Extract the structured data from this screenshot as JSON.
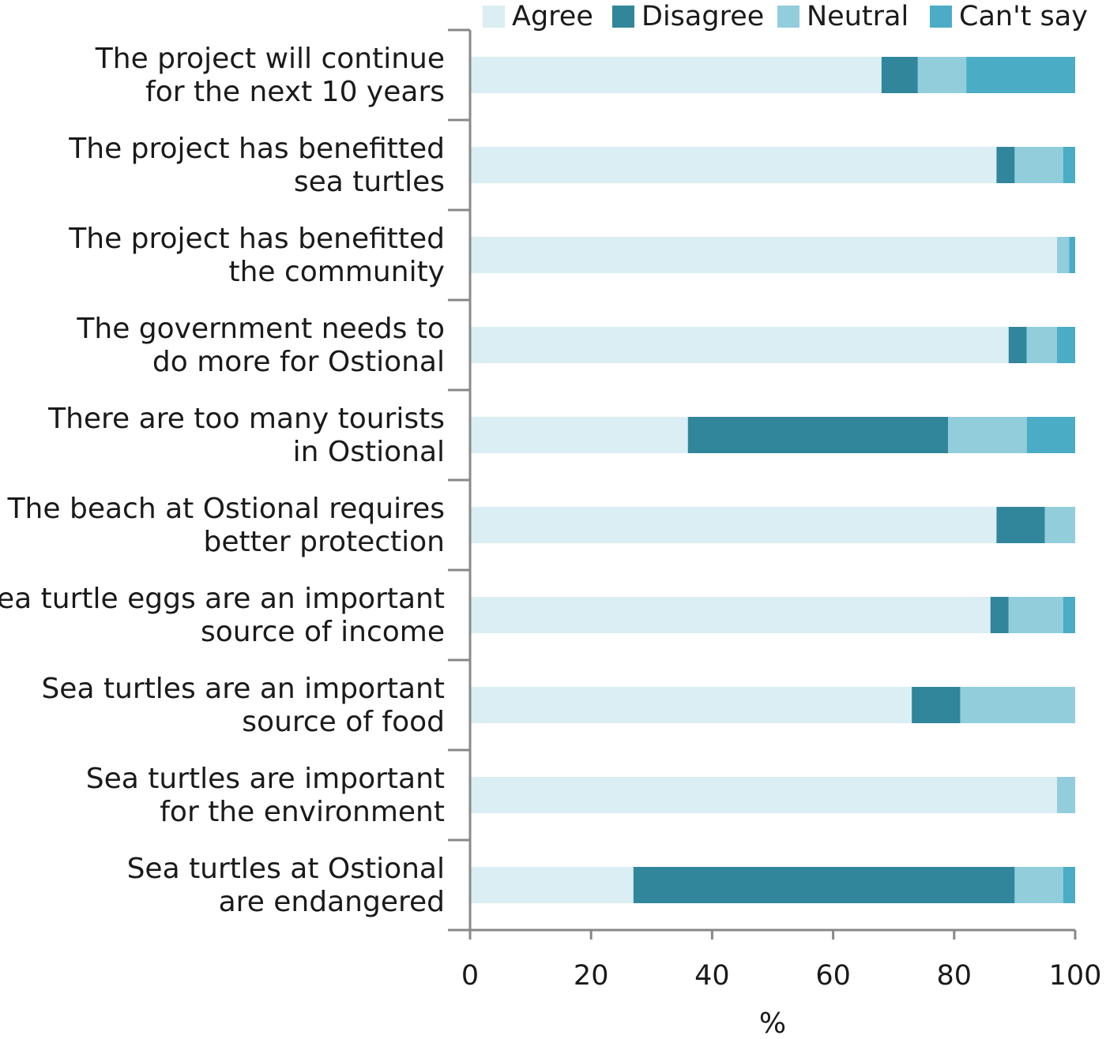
{
  "chart_data": {
    "type": "bar",
    "orientation": "horizontal",
    "stacked": true,
    "title": "",
    "xlabel": "%",
    "ylabel": "",
    "xlim": [
      0,
      100
    ],
    "xticks": [
      0,
      20,
      40,
      60,
      80,
      100
    ],
    "grid": false,
    "legend_position": "top",
    "categories": [
      [
        "The project will continue",
        "for the next 10 years"
      ],
      [
        "The project has benefitted",
        "sea turtles"
      ],
      [
        "The project has benefitted",
        "the community"
      ],
      [
        "The government needs to",
        "do more for Ostional"
      ],
      [
        "There are too many tourists",
        "in Ostional"
      ],
      [
        "The beach at Ostional requires",
        "better protection"
      ],
      [
        "Sea turtle eggs are an important",
        "source of income"
      ],
      [
        "Sea turtles are an important",
        "source of food"
      ],
      [
        "Sea turtles are important",
        "for the environment"
      ],
      [
        "Sea turtles at Ostional",
        "are endangered"
      ]
    ],
    "series": [
      {
        "name": "Agree",
        "color": "#daeef3",
        "values": [
          68,
          87,
          97,
          89,
          36,
          87,
          86,
          73,
          97,
          27
        ]
      },
      {
        "name": "Disagree",
        "color": "#31869b",
        "values": [
          6,
          3,
          0,
          3,
          43,
          8,
          3,
          8,
          0,
          63
        ]
      },
      {
        "name": "Neutral",
        "color": "#92cddc",
        "values": [
          8,
          8,
          2,
          5,
          13,
          5,
          9,
          19,
          3,
          8
        ]
      },
      {
        "name": "Can't say",
        "color": "#4bacc6",
        "values": [
          18,
          2,
          1,
          3,
          8,
          0,
          2,
          0,
          0,
          2
        ]
      }
    ]
  }
}
